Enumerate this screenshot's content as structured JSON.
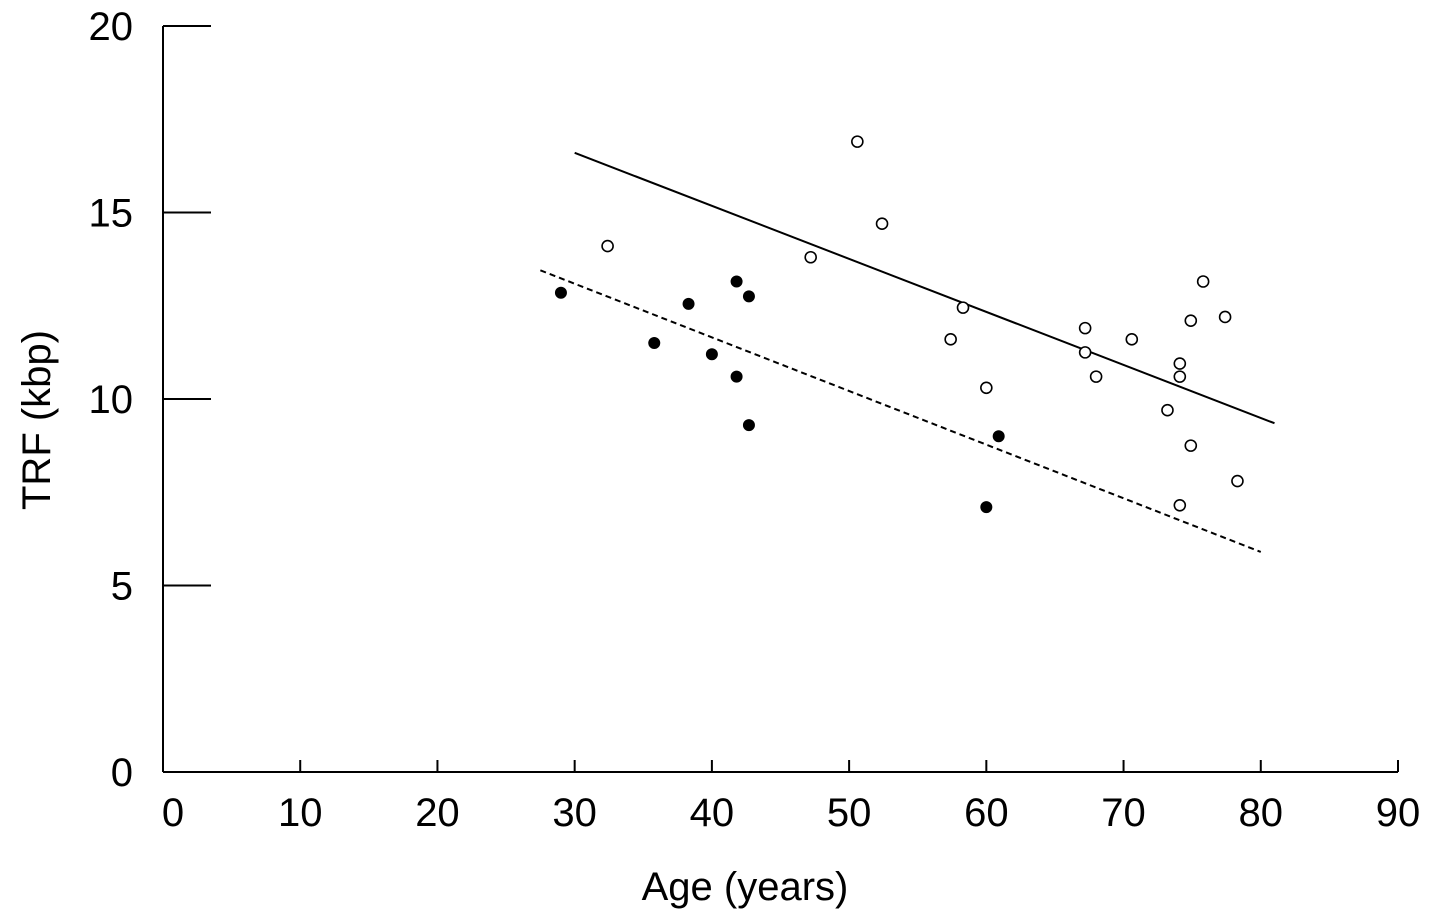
{
  "chart_data": {
    "type": "scatter",
    "title": "",
    "xlabel": "Age (years)",
    "ylabel": "TRF (kbp)",
    "xlim": [
      0,
      90
    ],
    "ylim": [
      0,
      20
    ],
    "xticks": [
      0,
      10,
      20,
      30,
      40,
      50,
      60,
      70,
      80,
      90
    ],
    "yticks": [
      0,
      5,
      10,
      15,
      20
    ],
    "grid": false,
    "legend": "none",
    "series": [
      {
        "marker": "filled-circle",
        "color": "#000000",
        "points": [
          {
            "x": 29.0,
            "y": 12.85
          },
          {
            "x": 35.8,
            "y": 11.5
          },
          {
            "x": 38.3,
            "y": 12.55
          },
          {
            "x": 40.0,
            "y": 11.2
          },
          {
            "x": 41.8,
            "y": 13.15
          },
          {
            "x": 42.7,
            "y": 12.75
          },
          {
            "x": 41.8,
            "y": 10.6
          },
          {
            "x": 42.7,
            "y": 9.3
          },
          {
            "x": 60.0,
            "y": 7.1
          },
          {
            "x": 60.9,
            "y": 9.0
          }
        ]
      },
      {
        "marker": "open-circle",
        "color": "#000000",
        "points": [
          {
            "x": 32.4,
            "y": 14.1
          },
          {
            "x": 47.2,
            "y": 13.8
          },
          {
            "x": 50.6,
            "y": 16.9
          },
          {
            "x": 52.4,
            "y": 14.7
          },
          {
            "x": 57.4,
            "y": 11.6
          },
          {
            "x": 58.3,
            "y": 12.45
          },
          {
            "x": 60.0,
            "y": 10.3
          },
          {
            "x": 67.2,
            "y": 11.9
          },
          {
            "x": 67.2,
            "y": 11.25
          },
          {
            "x": 68.0,
            "y": 10.6
          },
          {
            "x": 70.6,
            "y": 11.6
          },
          {
            "x": 73.2,
            "y": 9.7
          },
          {
            "x": 74.1,
            "y": 10.95
          },
          {
            "x": 74.1,
            "y": 10.6
          },
          {
            "x": 74.9,
            "y": 12.1
          },
          {
            "x": 75.8,
            "y": 13.15
          },
          {
            "x": 77.4,
            "y": 12.2
          },
          {
            "x": 74.9,
            "y": 8.75
          },
          {
            "x": 78.3,
            "y": 7.8
          },
          {
            "x": 74.1,
            "y": 7.15
          }
        ]
      }
    ],
    "trendlines": [
      {
        "style": "solid",
        "color": "#000000",
        "x": [
          30.0,
          81.0
        ],
        "y": [
          16.6,
          9.35
        ]
      },
      {
        "style": "dashed",
        "color": "#000000",
        "x": [
          27.5,
          80.0
        ],
        "y": [
          13.45,
          5.9
        ]
      }
    ]
  }
}
